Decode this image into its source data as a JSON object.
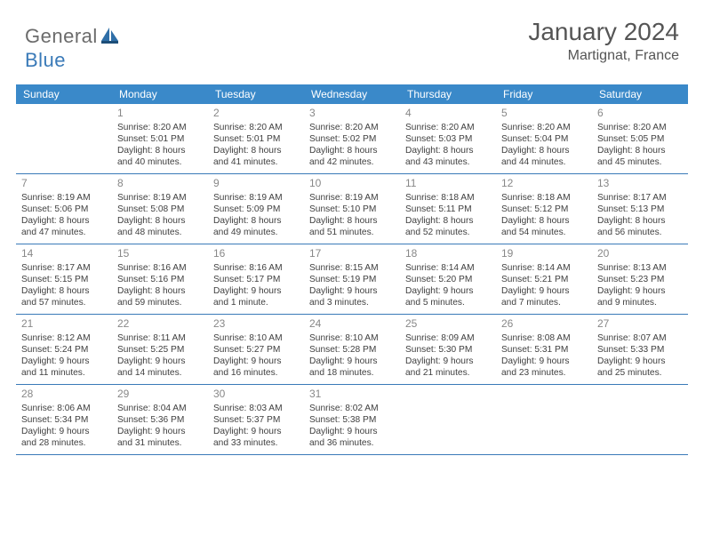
{
  "logo": {
    "text1": "General",
    "text2": "Blue"
  },
  "title": "January 2024",
  "subtitle": "Martignat, France",
  "colors": {
    "header_bg": "#3a89c9",
    "header_text": "#ffffff",
    "rule": "#3a7ab8",
    "body_text": "#404040",
    "daynum": "#888888",
    "logo_gray": "#6b6b6b",
    "logo_blue": "#3a7ab8",
    "background": "#ffffff"
  },
  "fonts": {
    "title_pt": 28,
    "subtitle_pt": 16,
    "dayhead_pt": 12,
    "cell_pt": 10.2,
    "daynum_pt": 12
  },
  "day_names": [
    "Sunday",
    "Monday",
    "Tuesday",
    "Wednesday",
    "Thursday",
    "Friday",
    "Saturday"
  ],
  "weeks": [
    [
      {
        "num": "",
        "lines": [
          "",
          "",
          "",
          ""
        ]
      },
      {
        "num": "1",
        "lines": [
          "Sunrise: 8:20 AM",
          "Sunset: 5:01 PM",
          "Daylight: 8 hours",
          "and 40 minutes."
        ]
      },
      {
        "num": "2",
        "lines": [
          "Sunrise: 8:20 AM",
          "Sunset: 5:01 PM",
          "Daylight: 8 hours",
          "and 41 minutes."
        ]
      },
      {
        "num": "3",
        "lines": [
          "Sunrise: 8:20 AM",
          "Sunset: 5:02 PM",
          "Daylight: 8 hours",
          "and 42 minutes."
        ]
      },
      {
        "num": "4",
        "lines": [
          "Sunrise: 8:20 AM",
          "Sunset: 5:03 PM",
          "Daylight: 8 hours",
          "and 43 minutes."
        ]
      },
      {
        "num": "5",
        "lines": [
          "Sunrise: 8:20 AM",
          "Sunset: 5:04 PM",
          "Daylight: 8 hours",
          "and 44 minutes."
        ]
      },
      {
        "num": "6",
        "lines": [
          "Sunrise: 8:20 AM",
          "Sunset: 5:05 PM",
          "Daylight: 8 hours",
          "and 45 minutes."
        ]
      }
    ],
    [
      {
        "num": "7",
        "lines": [
          "Sunrise: 8:19 AM",
          "Sunset: 5:06 PM",
          "Daylight: 8 hours",
          "and 47 minutes."
        ]
      },
      {
        "num": "8",
        "lines": [
          "Sunrise: 8:19 AM",
          "Sunset: 5:08 PM",
          "Daylight: 8 hours",
          "and 48 minutes."
        ]
      },
      {
        "num": "9",
        "lines": [
          "Sunrise: 8:19 AM",
          "Sunset: 5:09 PM",
          "Daylight: 8 hours",
          "and 49 minutes."
        ]
      },
      {
        "num": "10",
        "lines": [
          "Sunrise: 8:19 AM",
          "Sunset: 5:10 PM",
          "Daylight: 8 hours",
          "and 51 minutes."
        ]
      },
      {
        "num": "11",
        "lines": [
          "Sunrise: 8:18 AM",
          "Sunset: 5:11 PM",
          "Daylight: 8 hours",
          "and 52 minutes."
        ]
      },
      {
        "num": "12",
        "lines": [
          "Sunrise: 8:18 AM",
          "Sunset: 5:12 PM",
          "Daylight: 8 hours",
          "and 54 minutes."
        ]
      },
      {
        "num": "13",
        "lines": [
          "Sunrise: 8:17 AM",
          "Sunset: 5:13 PM",
          "Daylight: 8 hours",
          "and 56 minutes."
        ]
      }
    ],
    [
      {
        "num": "14",
        "lines": [
          "Sunrise: 8:17 AM",
          "Sunset: 5:15 PM",
          "Daylight: 8 hours",
          "and 57 minutes."
        ]
      },
      {
        "num": "15",
        "lines": [
          "Sunrise: 8:16 AM",
          "Sunset: 5:16 PM",
          "Daylight: 8 hours",
          "and 59 minutes."
        ]
      },
      {
        "num": "16",
        "lines": [
          "Sunrise: 8:16 AM",
          "Sunset: 5:17 PM",
          "Daylight: 9 hours",
          "and 1 minute."
        ]
      },
      {
        "num": "17",
        "lines": [
          "Sunrise: 8:15 AM",
          "Sunset: 5:19 PM",
          "Daylight: 9 hours",
          "and 3 minutes."
        ]
      },
      {
        "num": "18",
        "lines": [
          "Sunrise: 8:14 AM",
          "Sunset: 5:20 PM",
          "Daylight: 9 hours",
          "and 5 minutes."
        ]
      },
      {
        "num": "19",
        "lines": [
          "Sunrise: 8:14 AM",
          "Sunset: 5:21 PM",
          "Daylight: 9 hours",
          "and 7 minutes."
        ]
      },
      {
        "num": "20",
        "lines": [
          "Sunrise: 8:13 AM",
          "Sunset: 5:23 PM",
          "Daylight: 9 hours",
          "and 9 minutes."
        ]
      }
    ],
    [
      {
        "num": "21",
        "lines": [
          "Sunrise: 8:12 AM",
          "Sunset: 5:24 PM",
          "Daylight: 9 hours",
          "and 11 minutes."
        ]
      },
      {
        "num": "22",
        "lines": [
          "Sunrise: 8:11 AM",
          "Sunset: 5:25 PM",
          "Daylight: 9 hours",
          "and 14 minutes."
        ]
      },
      {
        "num": "23",
        "lines": [
          "Sunrise: 8:10 AM",
          "Sunset: 5:27 PM",
          "Daylight: 9 hours",
          "and 16 minutes."
        ]
      },
      {
        "num": "24",
        "lines": [
          "Sunrise: 8:10 AM",
          "Sunset: 5:28 PM",
          "Daylight: 9 hours",
          "and 18 minutes."
        ]
      },
      {
        "num": "25",
        "lines": [
          "Sunrise: 8:09 AM",
          "Sunset: 5:30 PM",
          "Daylight: 9 hours",
          "and 21 minutes."
        ]
      },
      {
        "num": "26",
        "lines": [
          "Sunrise: 8:08 AM",
          "Sunset: 5:31 PM",
          "Daylight: 9 hours",
          "and 23 minutes."
        ]
      },
      {
        "num": "27",
        "lines": [
          "Sunrise: 8:07 AM",
          "Sunset: 5:33 PM",
          "Daylight: 9 hours",
          "and 25 minutes."
        ]
      }
    ],
    [
      {
        "num": "28",
        "lines": [
          "Sunrise: 8:06 AM",
          "Sunset: 5:34 PM",
          "Daylight: 9 hours",
          "and 28 minutes."
        ]
      },
      {
        "num": "29",
        "lines": [
          "Sunrise: 8:04 AM",
          "Sunset: 5:36 PM",
          "Daylight: 9 hours",
          "and 31 minutes."
        ]
      },
      {
        "num": "30",
        "lines": [
          "Sunrise: 8:03 AM",
          "Sunset: 5:37 PM",
          "Daylight: 9 hours",
          "and 33 minutes."
        ]
      },
      {
        "num": "31",
        "lines": [
          "Sunrise: 8:02 AM",
          "Sunset: 5:38 PM",
          "Daylight: 9 hours",
          "and 36 minutes."
        ]
      },
      {
        "num": "",
        "lines": [
          "",
          "",
          "",
          ""
        ]
      },
      {
        "num": "",
        "lines": [
          "",
          "",
          "",
          ""
        ]
      },
      {
        "num": "",
        "lines": [
          "",
          "",
          "",
          ""
        ]
      }
    ]
  ]
}
